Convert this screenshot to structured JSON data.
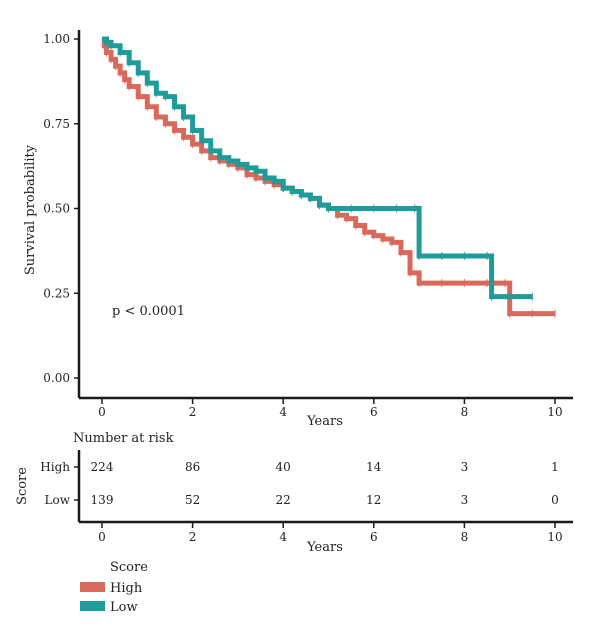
{
  "colors": {
    "high": "#d9695b",
    "low": "#1f9b9a",
    "axis": "#1a1a1a"
  },
  "chart_data": {
    "type": "line",
    "subtype": "kaplan-meier",
    "xlabel": "Years",
    "ylabel": "Survival probability",
    "xlim": [
      0,
      10
    ],
    "ylim": [
      0,
      1
    ],
    "x_ticks": [
      "0",
      "2",
      "4",
      "6",
      "8",
      "10"
    ],
    "y_ticks": [
      "0.00",
      "0.25",
      "0.50",
      "0.75",
      "1.00"
    ],
    "annotation": "p < 0.0001",
    "series": [
      {
        "name": "High",
        "color": "#d9695b",
        "x": [
          0,
          0.05,
          0.1,
          0.2,
          0.3,
          0.4,
          0.5,
          0.6,
          0.8,
          1.0,
          1.2,
          1.4,
          1.6,
          1.8,
          2.0,
          2.2,
          2.4,
          2.6,
          2.8,
          3.0,
          3.2,
          3.4,
          3.6,
          3.8,
          4.0,
          4.2,
          4.4,
          4.6,
          4.8,
          5.0,
          5.2,
          5.4,
          5.6,
          5.8,
          6.0,
          6.2,
          6.4,
          6.6,
          6.8,
          7.0,
          7.5,
          8.0,
          8.5,
          8.9,
          9.0,
          9.5,
          10.0
        ],
        "y": [
          1.0,
          0.98,
          0.96,
          0.94,
          0.92,
          0.9,
          0.88,
          0.86,
          0.83,
          0.8,
          0.77,
          0.75,
          0.73,
          0.71,
          0.69,
          0.67,
          0.65,
          0.64,
          0.63,
          0.62,
          0.6,
          0.59,
          0.58,
          0.57,
          0.56,
          0.55,
          0.54,
          0.53,
          0.51,
          0.5,
          0.48,
          0.47,
          0.45,
          0.43,
          0.42,
          0.41,
          0.4,
          0.37,
          0.31,
          0.28,
          0.28,
          0.28,
          0.28,
          0.28,
          0.19,
          0.19,
          0.19
        ]
      },
      {
        "name": "Low",
        "color": "#1f9b9a",
        "x": [
          0,
          0.1,
          0.2,
          0.4,
          0.6,
          0.8,
          1.0,
          1.2,
          1.4,
          1.6,
          1.8,
          2.0,
          2.2,
          2.4,
          2.6,
          2.8,
          3.0,
          3.2,
          3.4,
          3.6,
          3.8,
          4.0,
          4.2,
          4.4,
          4.6,
          4.8,
          5.0,
          5.5,
          6.0,
          6.5,
          6.9,
          7.0,
          7.5,
          8.0,
          8.5,
          8.6,
          9.0,
          9.5
        ],
        "y": [
          1.0,
          0.99,
          0.98,
          0.96,
          0.93,
          0.9,
          0.87,
          0.84,
          0.83,
          0.8,
          0.77,
          0.73,
          0.7,
          0.67,
          0.65,
          0.64,
          0.63,
          0.62,
          0.61,
          0.59,
          0.58,
          0.56,
          0.55,
          0.54,
          0.53,
          0.51,
          0.5,
          0.5,
          0.5,
          0.5,
          0.5,
          0.36,
          0.36,
          0.36,
          0.36,
          0.24,
          0.24,
          0.24
        ]
      }
    ]
  },
  "risk_table": {
    "title": "Number at risk",
    "axis_title": "Score",
    "xlabel": "Years",
    "times": [
      0,
      2,
      4,
      6,
      8,
      10
    ],
    "rows": [
      {
        "label": "High",
        "values": [
          "224",
          "86",
          "40",
          "14",
          "3",
          "1"
        ]
      },
      {
        "label": "Low",
        "values": [
          "139",
          "52",
          "22",
          "12",
          "3",
          "0"
        ]
      }
    ]
  },
  "legend": {
    "title": "Score",
    "items": [
      {
        "label": "High",
        "color": "#d9695b"
      },
      {
        "label": "Low",
        "color": "#1f9b9a"
      }
    ]
  }
}
